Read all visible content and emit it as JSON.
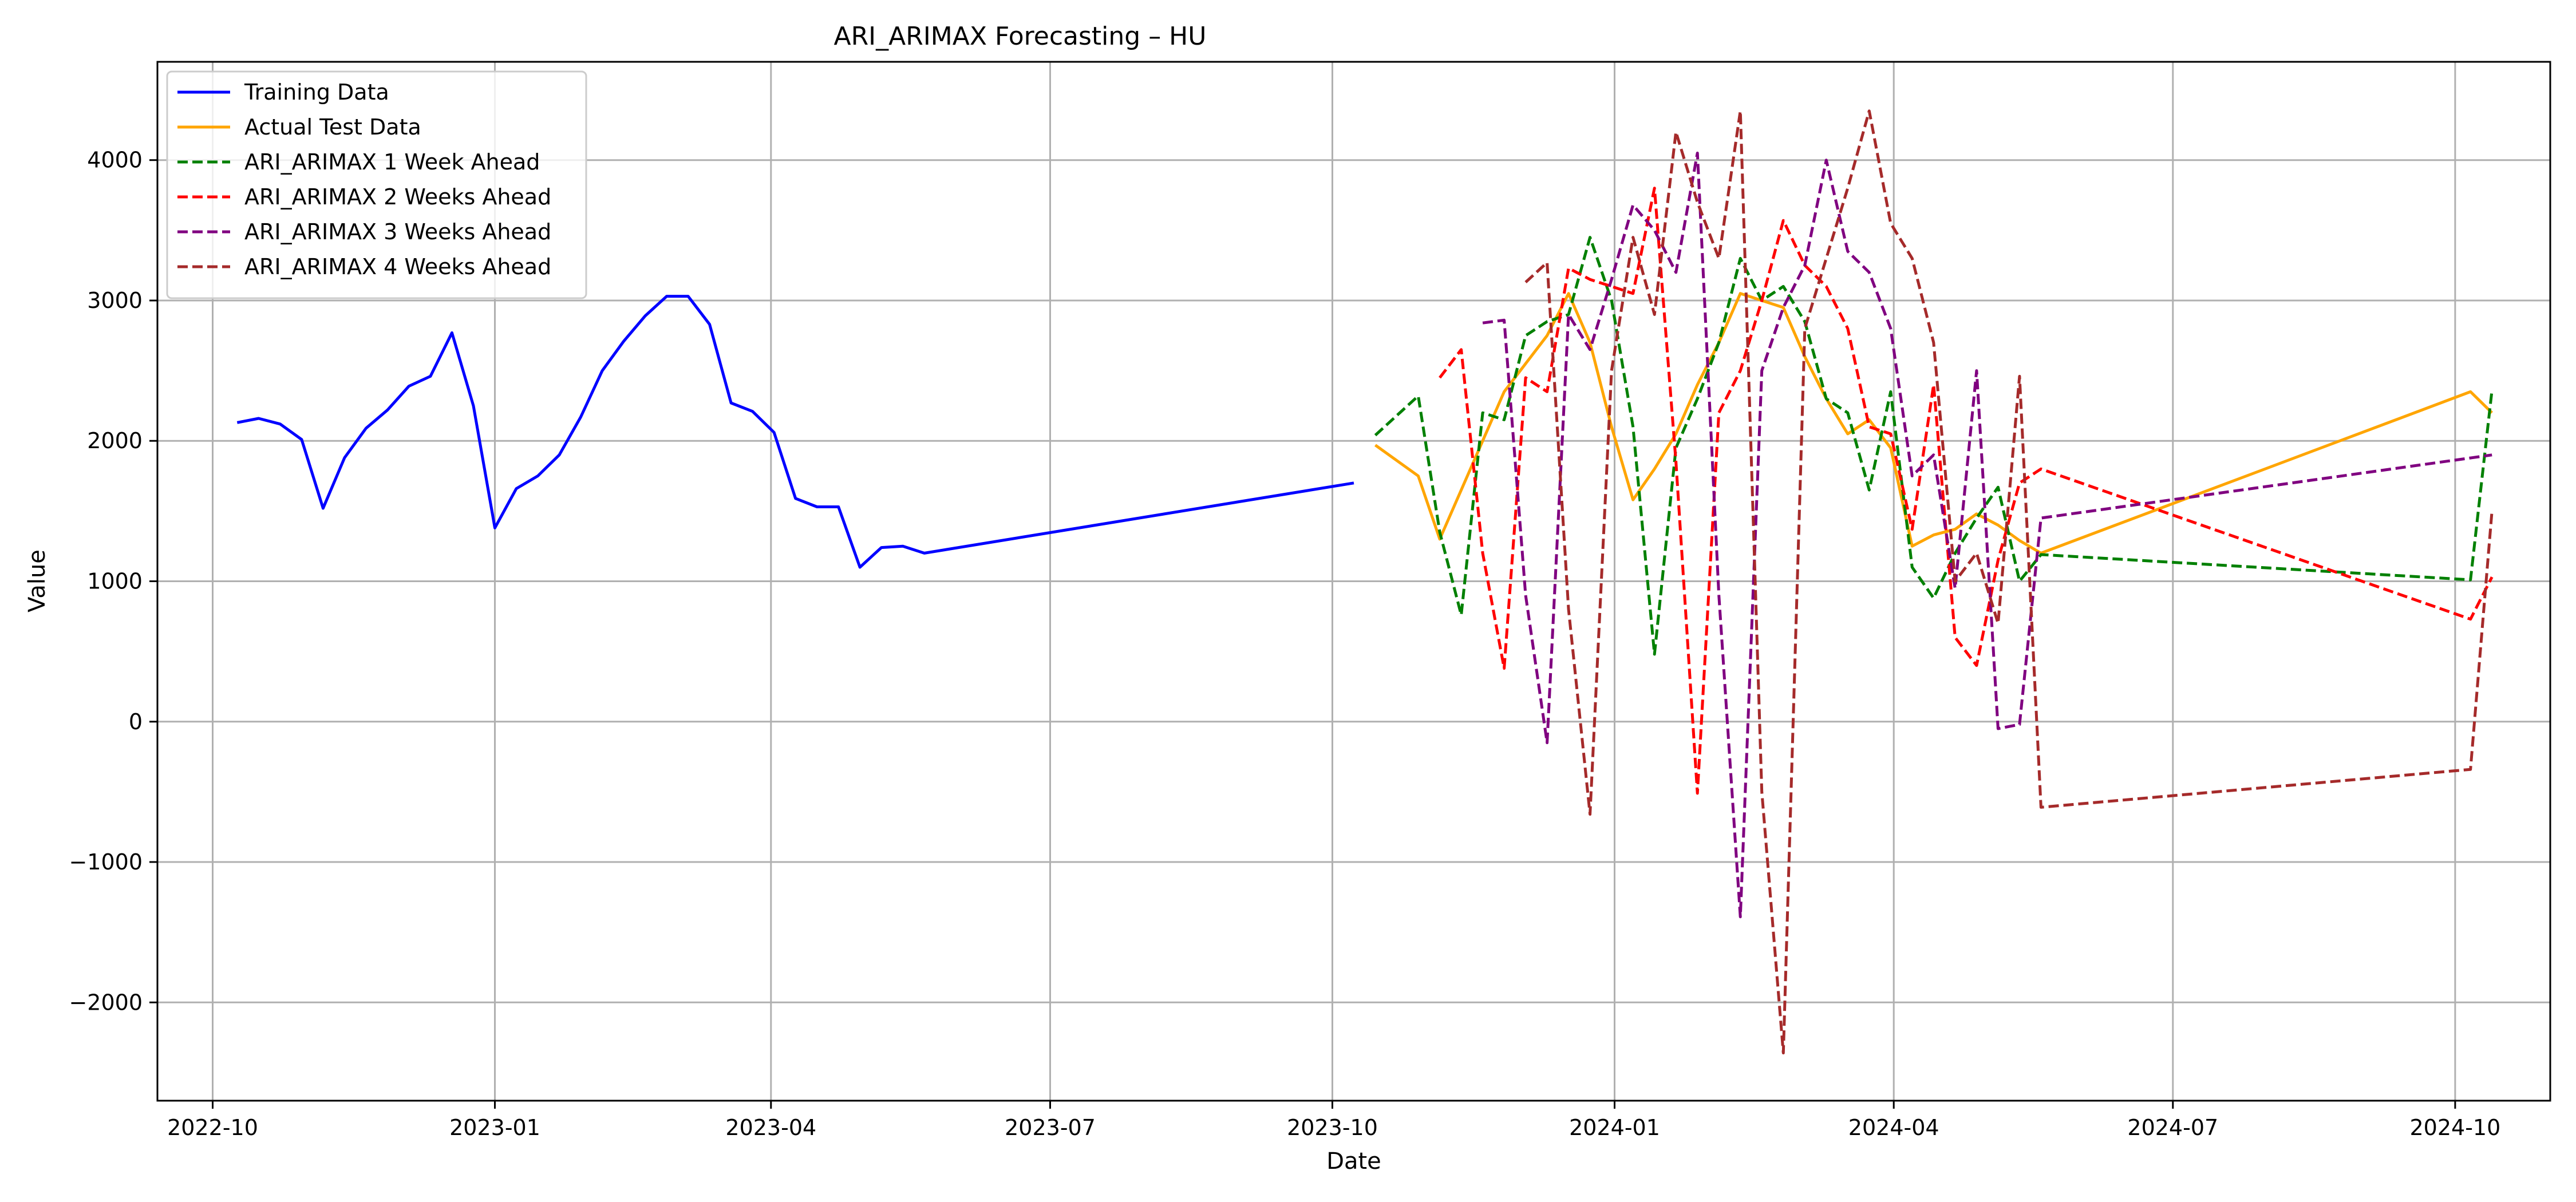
{
  "chart_data": {
    "type": "line",
    "title": "ARI_ARIMAX Forecasting – HU",
    "xlabel": "Date",
    "ylabel": "Value",
    "x_type": "date",
    "xlim": [
      "2022-09-13",
      "2024-11-01"
    ],
    "ylim": [
      -2700,
      4700
    ],
    "x_ticks": [
      "2022-10-01",
      "2023-01-01",
      "2023-04-01",
      "2023-07-01",
      "2023-10-01",
      "2024-01-01",
      "2024-04-01",
      "2024-07-01",
      "2024-10-01"
    ],
    "x_tick_labels": [
      "2022-10",
      "2023-01",
      "2023-04",
      "2023-07",
      "2023-10",
      "2024-01",
      "2024-04",
      "2024-07",
      "2024-10"
    ],
    "y_ticks": [
      -2000,
      -1000,
      0,
      1000,
      2000,
      3000,
      4000
    ],
    "y_tick_labels": [
      "−2000",
      "−1000",
      "0",
      "1000",
      "2000",
      "3000",
      "4000"
    ],
    "grid": true,
    "legend_position": "top-left",
    "series": [
      {
        "name": "Training Data",
        "color": "#0000ff",
        "style": "solid",
        "x": [
          "2022-10-09",
          "2022-10-16",
          "2022-10-23",
          "2022-10-30",
          "2022-11-06",
          "2022-11-13",
          "2022-11-20",
          "2022-11-27",
          "2022-12-04",
          "2022-12-11",
          "2022-12-18",
          "2022-12-25",
          "2023-01-01",
          "2023-01-08",
          "2023-01-15",
          "2023-01-22",
          "2023-01-29",
          "2023-02-05",
          "2023-02-12",
          "2023-02-19",
          "2023-02-26",
          "2023-03-05",
          "2023-03-12",
          "2023-03-19",
          "2023-03-26",
          "2023-04-02",
          "2023-04-09",
          "2023-04-16",
          "2023-04-23",
          "2023-04-30",
          "2023-05-07",
          "2023-05-14",
          "2023-05-21",
          "2023-10-08"
        ],
        "y": [
          2130,
          2160,
          2120,
          2010,
          1520,
          1880,
          2090,
          2220,
          2390,
          2460,
          2770,
          2250,
          1380,
          1660,
          1750,
          1900,
          2170,
          2500,
          2710,
          2890,
          3030,
          3030,
          2830,
          2270,
          2210,
          2060,
          1590,
          1530,
          1530,
          1100,
          1240,
          1250,
          1200,
          1700
        ]
      },
      {
        "name": "Actual Test Data",
        "color": "#ffa500",
        "style": "solid",
        "x": [
          "2023-10-15",
          "2023-10-29",
          "2023-11-05",
          "2023-11-12",
          "2023-11-19",
          "2023-11-26",
          "2023-12-03",
          "2023-12-10",
          "2023-12-17",
          "2023-12-24",
          "2023-12-31",
          "2024-01-07",
          "2024-01-14",
          "2024-01-21",
          "2024-01-28",
          "2024-02-04",
          "2024-02-11",
          "2024-02-18",
          "2024-02-25",
          "2024-03-03",
          "2024-03-10",
          "2024-03-17",
          "2024-03-24",
          "2024-03-31",
          "2024-04-07",
          "2024-04-14",
          "2024-04-21",
          "2024-04-28",
          "2024-05-05",
          "2024-05-12",
          "2024-05-19",
          "2024-10-06",
          "2024-10-13"
        ],
        "y": [
          1970,
          1750,
          1300,
          1650,
          2000,
          2350,
          2550,
          2750,
          3050,
          2700,
          2100,
          1580,
          1800,
          2050,
          2400,
          2700,
          3050,
          3000,
          2950,
          2600,
          2300,
          2050,
          2150,
          1950,
          1250,
          1330,
          1370,
          1480,
          1400,
          1290,
          1200,
          2350,
          2200
        ]
      },
      {
        "name": "ARI_ARIMAX 1 Week Ahead",
        "color": "#008000",
        "style": "dashed",
        "x": [
          "2023-10-15",
          "2023-10-29",
          "2023-11-05",
          "2023-11-12",
          "2023-11-19",
          "2023-11-26",
          "2023-12-03",
          "2023-12-10",
          "2023-12-17",
          "2023-12-24",
          "2023-12-31",
          "2024-01-07",
          "2024-01-14",
          "2024-01-21",
          "2024-01-28",
          "2024-02-04",
          "2024-02-11",
          "2024-02-18",
          "2024-02-25",
          "2024-03-03",
          "2024-03-10",
          "2024-03-17",
          "2024-03-24",
          "2024-03-31",
          "2024-04-07",
          "2024-04-14",
          "2024-04-21",
          "2024-04-28",
          "2024-05-05",
          "2024-05-12",
          "2024-05-19",
          "2024-10-06",
          "2024-10-13"
        ],
        "y": [
          2040,
          2320,
          1350,
          760,
          2200,
          2150,
          2750,
          2850,
          2900,
          3450,
          3000,
          2100,
          480,
          1950,
          2300,
          2700,
          3300,
          3000,
          3100,
          2850,
          2300,
          2200,
          1650,
          2350,
          1100,
          880,
          1200,
          1450,
          1670,
          1000,
          1190,
          1010,
          2360
        ]
      },
      {
        "name": "ARI_ARIMAX 2 Weeks Ahead",
        "color": "#ff0000",
        "style": "dashed",
        "x": [
          "2023-11-05",
          "2023-11-12",
          "2023-11-19",
          "2023-11-26",
          "2023-12-03",
          "2023-12-10",
          "2023-12-17",
          "2023-12-24",
          "2023-12-31",
          "2024-01-07",
          "2024-01-14",
          "2024-01-21",
          "2024-01-28",
          "2024-02-04",
          "2024-02-11",
          "2024-02-18",
          "2024-02-25",
          "2024-03-03",
          "2024-03-10",
          "2024-03-17",
          "2024-03-24",
          "2024-03-31",
          "2024-04-07",
          "2024-04-14",
          "2024-04-21",
          "2024-04-28",
          "2024-05-05",
          "2024-05-12",
          "2024-05-19",
          "2024-10-06",
          "2024-10-13"
        ],
        "y": [
          2450,
          2650,
          1200,
          380,
          2450,
          2350,
          3230,
          3150,
          3100,
          3050,
          3800,
          1850,
          -510,
          2200,
          2500,
          3000,
          3570,
          3250,
          3100,
          2800,
          2100,
          2050,
          1370,
          2400,
          600,
          400,
          1150,
          1700,
          1800,
          730,
          1030
        ]
      },
      {
        "name": "ARI_ARIMAX 3 Weeks Ahead",
        "color": "#800080",
        "style": "dashed",
        "x": [
          "2023-11-19",
          "2023-11-26",
          "2023-12-03",
          "2023-12-10",
          "2023-12-17",
          "2023-12-24",
          "2023-12-31",
          "2024-01-07",
          "2024-01-14",
          "2024-01-21",
          "2024-01-28",
          "2024-02-04",
          "2024-02-11",
          "2024-02-18",
          "2024-02-25",
          "2024-03-03",
          "2024-03-10",
          "2024-03-17",
          "2024-03-24",
          "2024-03-31",
          "2024-04-07",
          "2024-04-14",
          "2024-04-21",
          "2024-04-28",
          "2024-05-05",
          "2024-05-12",
          "2024-05-19",
          "2024-10-13"
        ],
        "y": [
          2840,
          2860,
          900,
          -150,
          2900,
          2650,
          3150,
          3680,
          3500,
          3200,
          4050,
          900,
          -1390,
          2500,
          2950,
          3250,
          4000,
          3350,
          3200,
          2800,
          1750,
          1900,
          950,
          2500,
          -50,
          -20,
          1450,
          1900
        ]
      },
      {
        "name": "ARI_ARIMAX 4 Weeks Ahead",
        "color": "#a52a2a",
        "style": "dashed",
        "x": [
          "2023-12-03",
          "2023-12-10",
          "2023-12-17",
          "2023-12-24",
          "2023-12-31",
          "2024-01-07",
          "2024-01-14",
          "2024-01-21",
          "2024-01-28",
          "2024-02-04",
          "2024-02-11",
          "2024-02-18",
          "2024-02-25",
          "2024-03-03",
          "2024-03-10",
          "2024-03-17",
          "2024-03-24",
          "2024-03-31",
          "2024-04-07",
          "2024-04-14",
          "2024-04-21",
          "2024-04-28",
          "2024-05-05",
          "2024-05-12",
          "2024-05-19",
          "2024-10-06",
          "2024-10-13"
        ],
        "y": [
          3130,
          3270,
          800,
          -660,
          2500,
          3450,
          2900,
          4200,
          3700,
          3300,
          4350,
          -500,
          -2360,
          2800,
          3300,
          3800,
          4350,
          3550,
          3300,
          2700,
          1000,
          1200,
          700,
          2460,
          -610,
          -340,
          1500
        ]
      }
    ]
  }
}
